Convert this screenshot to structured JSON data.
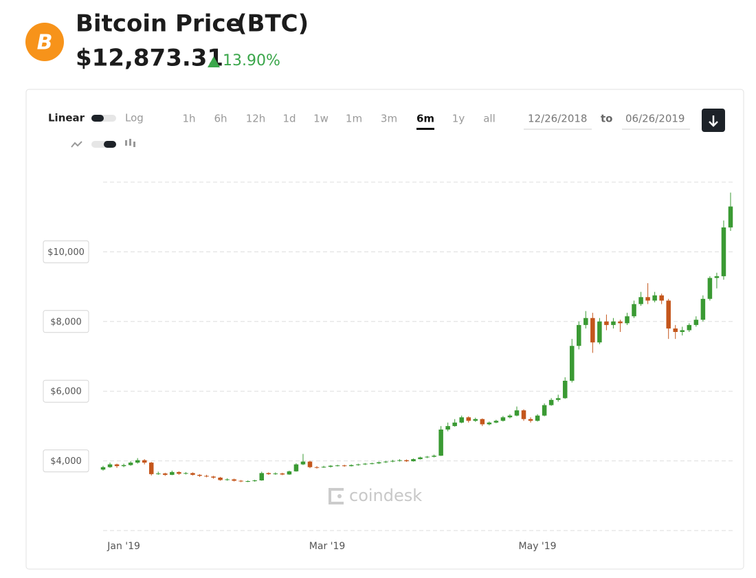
{
  "header": {
    "title": "Bitcoin Price",
    "symbol": "(BTC)",
    "price": "$12,873.31",
    "change": "13.90%"
  },
  "controls": {
    "scale_linear": "Linear",
    "scale_log": "Log",
    "ranges": [
      "1h",
      "6h",
      "12h",
      "1d",
      "1w",
      "1m",
      "3m",
      "6m",
      "1y",
      "all"
    ],
    "selected_range_index": 7,
    "date_from": "12/26/2018",
    "date_sep": "to",
    "date_to": "06/26/2019"
  },
  "watermark": "coindesk",
  "chart_data": {
    "type": "candlestick",
    "x": [
      0,
      2,
      4,
      6,
      8,
      10,
      12,
      14,
      16,
      18,
      20,
      22,
      24,
      26,
      28,
      30,
      32,
      34,
      36,
      38,
      40,
      42,
      44,
      46,
      48,
      50,
      52,
      54,
      56,
      58,
      60,
      62,
      64,
      66,
      68,
      70,
      72,
      74,
      76,
      78,
      80,
      82,
      84,
      86,
      88,
      90,
      92,
      94,
      96,
      98,
      100,
      102,
      104,
      106,
      108,
      110,
      112,
      114,
      116,
      118,
      120,
      122,
      124,
      126,
      128,
      130,
      132,
      134,
      136,
      138,
      140,
      142,
      144,
      146,
      148,
      150,
      152,
      154,
      156,
      158,
      160,
      162,
      164,
      166,
      168,
      170,
      172,
      174,
      176,
      178,
      180,
      182
    ],
    "ohlc": [
      [
        3750,
        3860,
        3720,
        3820
      ],
      [
        3820,
        3950,
        3800,
        3900
      ],
      [
        3900,
        3920,
        3800,
        3850
      ],
      [
        3850,
        3920,
        3820,
        3880
      ],
      [
        3880,
        3990,
        3860,
        3950
      ],
      [
        3950,
        4080,
        3920,
        4020
      ],
      [
        4020,
        4050,
        3900,
        3950
      ],
      [
        3950,
        3970,
        3580,
        3620
      ],
      [
        3620,
        3690,
        3600,
        3640
      ],
      [
        3640,
        3660,
        3570,
        3600
      ],
      [
        3600,
        3720,
        3590,
        3680
      ],
      [
        3680,
        3700,
        3600,
        3630
      ],
      [
        3630,
        3680,
        3610,
        3650
      ],
      [
        3650,
        3670,
        3580,
        3600
      ],
      [
        3600,
        3620,
        3540,
        3570
      ],
      [
        3570,
        3600,
        3530,
        3550
      ],
      [
        3550,
        3570,
        3490,
        3520
      ],
      [
        3520,
        3540,
        3430,
        3450
      ],
      [
        3450,
        3500,
        3430,
        3470
      ],
      [
        3470,
        3490,
        3410,
        3430
      ],
      [
        3430,
        3450,
        3390,
        3410
      ],
      [
        3410,
        3440,
        3390,
        3420
      ],
      [
        3420,
        3460,
        3400,
        3440
      ],
      [
        3440,
        3690,
        3430,
        3650
      ],
      [
        3650,
        3670,
        3600,
        3620
      ],
      [
        3620,
        3670,
        3600,
        3640
      ],
      [
        3640,
        3660,
        3590,
        3610
      ],
      [
        3610,
        3720,
        3600,
        3700
      ],
      [
        3700,
        3930,
        3690,
        3900
      ],
      [
        3900,
        4200,
        3880,
        3980
      ],
      [
        3980,
        4000,
        3790,
        3820
      ],
      [
        3820,
        3850,
        3780,
        3810
      ],
      [
        3810,
        3860,
        3800,
        3830
      ],
      [
        3830,
        3880,
        3810,
        3860
      ],
      [
        3860,
        3890,
        3840,
        3870
      ],
      [
        3870,
        3890,
        3830,
        3850
      ],
      [
        3850,
        3900,
        3840,
        3880
      ],
      [
        3880,
        3920,
        3860,
        3900
      ],
      [
        3900,
        3940,
        3880,
        3920
      ],
      [
        3920,
        3950,
        3900,
        3930
      ],
      [
        3930,
        3980,
        3910,
        3960
      ],
      [
        3960,
        4000,
        3940,
        3980
      ],
      [
        3980,
        4030,
        3960,
        4000
      ],
      [
        4000,
        4050,
        3980,
        4020
      ],
      [
        4020,
        4040,
        3970,
        3990
      ],
      [
        3990,
        4070,
        3980,
        4050
      ],
      [
        4050,
        4120,
        4040,
        4100
      ],
      [
        4100,
        4140,
        4080,
        4120
      ],
      [
        4120,
        4180,
        4100,
        4150
      ],
      [
        4150,
        5000,
        4140,
        4900
      ],
      [
        4900,
        5100,
        4850,
        5000
      ],
      [
        5000,
        5200,
        4980,
        5100
      ],
      [
        5100,
        5300,
        5080,
        5250
      ],
      [
        5250,
        5280,
        5100,
        5150
      ],
      [
        5150,
        5240,
        5120,
        5200
      ],
      [
        5200,
        5220,
        5000,
        5050
      ],
      [
        5050,
        5130,
        5020,
        5100
      ],
      [
        5100,
        5180,
        5080,
        5150
      ],
      [
        5150,
        5290,
        5130,
        5250
      ],
      [
        5250,
        5340,
        5220,
        5300
      ],
      [
        5300,
        5560,
        5280,
        5450
      ],
      [
        5450,
        5480,
        5150,
        5200
      ],
      [
        5200,
        5250,
        5100,
        5150
      ],
      [
        5150,
        5340,
        5130,
        5300
      ],
      [
        5300,
        5650,
        5280,
        5600
      ],
      [
        5600,
        5800,
        5580,
        5750
      ],
      [
        5750,
        5900,
        5700,
        5800
      ],
      [
        5800,
        6400,
        5780,
        6300
      ],
      [
        6300,
        7500,
        6250,
        7300
      ],
      [
        7300,
        8000,
        7200,
        7900
      ],
      [
        7900,
        8300,
        7800,
        8100
      ],
      [
        8100,
        8250,
        7100,
        7400
      ],
      [
        7400,
        8100,
        7350,
        8000
      ],
      [
        8000,
        8200,
        7750,
        7900
      ],
      [
        7900,
        8100,
        7800,
        8000
      ],
      [
        8000,
        8050,
        7700,
        7950
      ],
      [
        7950,
        8250,
        7900,
        8150
      ],
      [
        8150,
        8600,
        8100,
        8500
      ],
      [
        8500,
        8850,
        8450,
        8700
      ],
      [
        8700,
        9100,
        8500,
        8600
      ],
      [
        8600,
        8850,
        8550,
        8750
      ],
      [
        8750,
        8800,
        8500,
        8600
      ],
      [
        8600,
        8650,
        7500,
        7800
      ],
      [
        7800,
        7900,
        7500,
        7700
      ],
      [
        7700,
        7850,
        7600,
        7750
      ],
      [
        7750,
        7950,
        7700,
        7900
      ],
      [
        7900,
        8150,
        7850,
        8050
      ],
      [
        8050,
        8750,
        8000,
        8650
      ],
      [
        8650,
        9300,
        8600,
        9250
      ],
      [
        9250,
        9400,
        8950,
        9300
      ],
      [
        9300,
        10900,
        9200,
        10700
      ],
      [
        10700,
        11700,
        10600,
        11300
      ]
    ],
    "up_color": "#3a9a33",
    "down_color": "#c4561c",
    "xlim": [
      0,
      182
    ],
    "xticks": [
      {
        "value": 6,
        "label": "Jan '19"
      },
      {
        "value": 65,
        "label": "Mar '19"
      },
      {
        "value": 126,
        "label": "May '19"
      }
    ],
    "ylim": [
      2000,
      12000
    ],
    "yticks": [
      {
        "value": 4000,
        "label": "$4,000"
      },
      {
        "value": 6000,
        "label": "$6,000"
      },
      {
        "value": 8000,
        "label": "$8,000"
      },
      {
        "value": 10000,
        "label": "$10,000"
      }
    ],
    "grid": true
  }
}
